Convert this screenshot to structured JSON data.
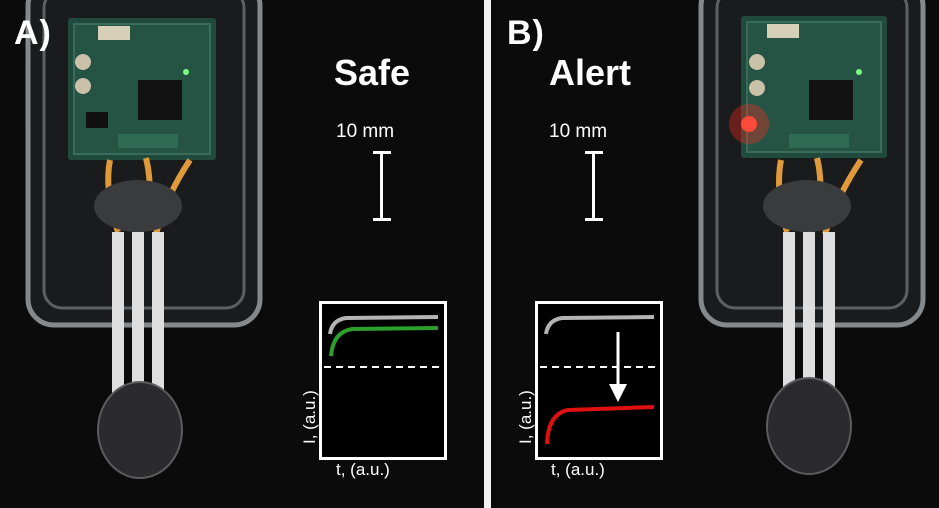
{
  "panels": [
    {
      "id": "A",
      "label": "A)",
      "status": "Safe",
      "scale": "10 mm",
      "x_label": "t, (a.u.)",
      "y_label": "I, (a.u.)",
      "trace_colors": {
        "reference": "#b4b4b4",
        "signal": "#2ca02c"
      },
      "led_on": false
    },
    {
      "id": "B",
      "label": "B)",
      "status": "Alert",
      "scale": "10 mm",
      "x_label": "t, (a.u.)",
      "y_label": "I, (a.u.)",
      "trace_colors": {
        "reference": "#b4b4b4",
        "signal": "#e01010"
      },
      "led_on": true,
      "led_color": "#ff2a20"
    }
  ]
}
